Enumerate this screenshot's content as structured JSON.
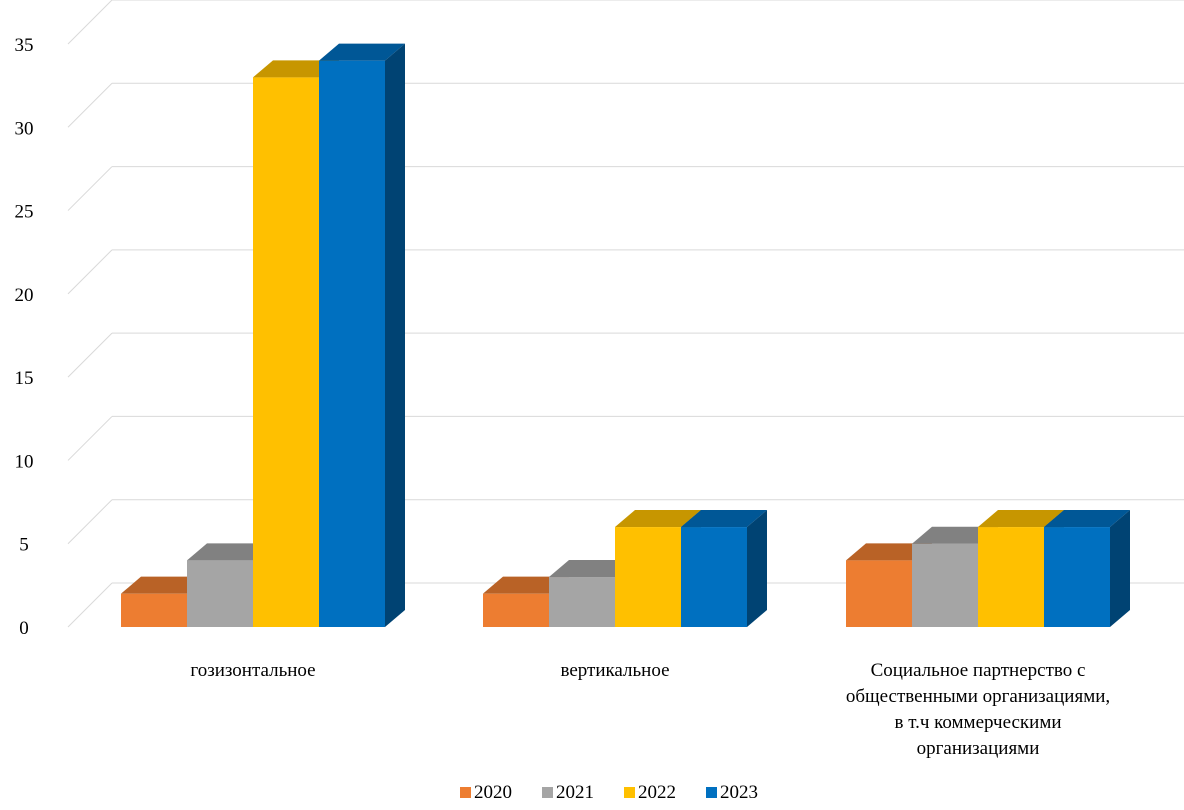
{
  "chart_data": {
    "type": "bar",
    "categories": [
      [
        "гозизонтальное"
      ],
      [
        "вертикальное"
      ],
      [
        "Социальное партнерство с",
        "общественными организациями,",
        "в т.ч коммерческими",
        "организациями"
      ]
    ],
    "series": [
      {
        "name": "2020",
        "values": [
          2,
          2,
          4
        ],
        "color": "#ED7D31"
      },
      {
        "name": "2021",
        "values": [
          4,
          3,
          5
        ],
        "color": "#A5A5A5"
      },
      {
        "name": "2022",
        "values": [
          33,
          6,
          6
        ],
        "color": "#FFC000"
      },
      {
        "name": "2023",
        "values": [
          34,
          6,
          6
        ],
        "color": "#0070C0"
      }
    ],
    "yticks": [
      "0",
      "5",
      "10",
      "15",
      "20",
      "25",
      "30",
      "35"
    ],
    "ylim": [
      0,
      35
    ],
    "title": "",
    "xlabel": "",
    "ylabel": "",
    "grid": true,
    "legend_position": "bottom",
    "style": "3d-clustered-column"
  }
}
